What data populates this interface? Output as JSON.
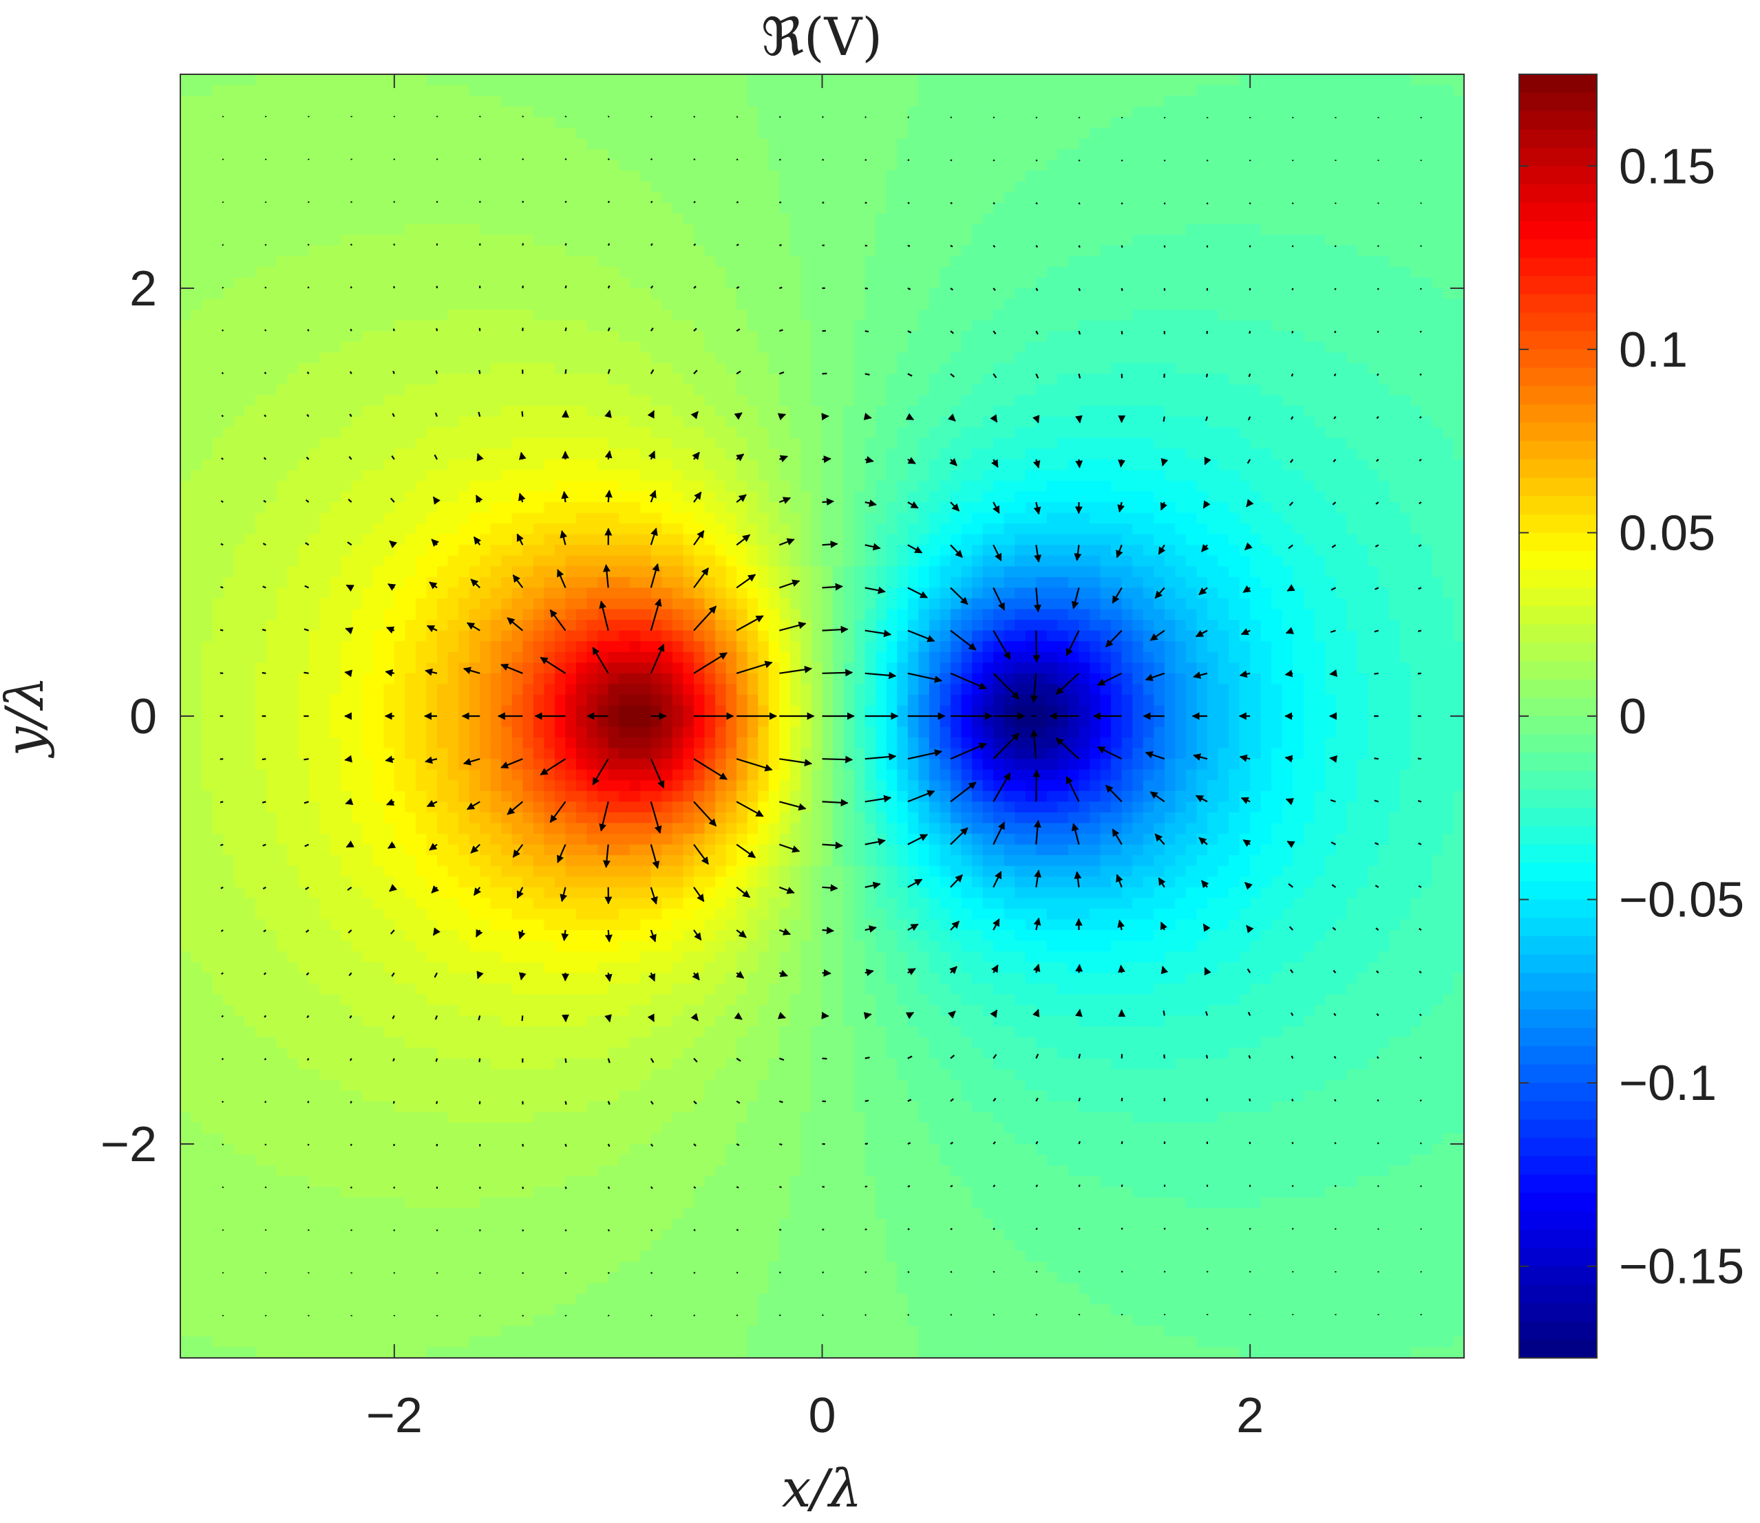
{
  "chart_data": {
    "type": "heatmap",
    "title": "ℜ(V)",
    "xlabel": "x/λ",
    "ylabel": "y/λ",
    "xlim": [
      -3,
      3
    ],
    "ylim": [
      -3,
      3
    ],
    "x_ticks": [
      -2,
      0,
      2
    ],
    "x_tick_labels": [
      "−2",
      "0",
      "2"
    ],
    "y_ticks": [
      2,
      0,
      -2
    ],
    "y_tick_labels": [
      "2",
      "0",
      "−2"
    ],
    "colorbar": {
      "range": [
        -0.175,
        0.175
      ],
      "colormap": "jet",
      "ticks": [
        0.15,
        0.1,
        0.05,
        0,
        -0.05,
        -0.1,
        -0.15
      ],
      "tick_labels": [
        "0.15",
        "0.1",
        "0.05",
        "0",
        "−0.05",
        "−0.1",
        "−0.15"
      ]
    },
    "field": {
      "description_kind": "dipole potential",
      "positive_source": {
        "x": -0.85,
        "y": 0,
        "peak": 0.175
      },
      "negative_source": {
        "x": 0.95,
        "y": 0,
        "peak": -0.175
      }
    },
    "quiver": {
      "grid_step": 0.2,
      "grid_x_range": [
        -2.8,
        2.8
      ],
      "grid_y_range": [
        -2.8,
        2.8
      ]
    },
    "grid": false
  }
}
